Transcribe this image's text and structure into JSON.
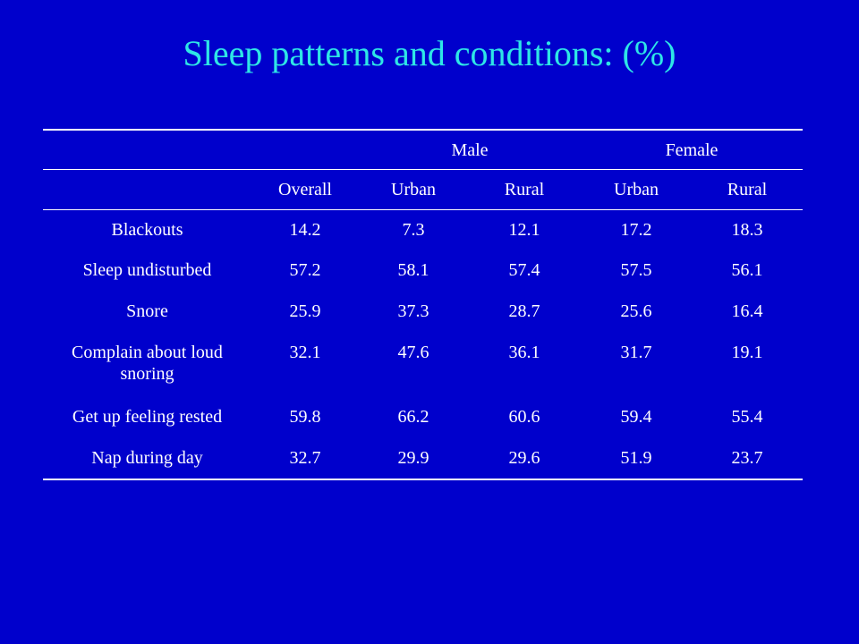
{
  "title": "Sleep patterns and conditions: (%)",
  "table": {
    "group_headers": [
      "Male",
      "Female"
    ],
    "column_headers": [
      "Overall",
      "Urban",
      "Rural",
      "Urban",
      "Rural"
    ],
    "rows": [
      {
        "label": "Blackouts",
        "values": [
          "14.2",
          "7.3",
          "12.1",
          "17.2",
          "18.3"
        ]
      },
      {
        "label": "Sleep undisturbed",
        "values": [
          "57.2",
          "58.1",
          "57.4",
          "57.5",
          "56.1"
        ]
      },
      {
        "label": "Snore",
        "values": [
          "25.9",
          "37.3",
          "28.7",
          "25.6",
          "16.4"
        ]
      },
      {
        "label": "Complain about loud snoring",
        "values": [
          "32.1",
          "47.6",
          "36.1",
          "31.7",
          "19.1"
        ]
      },
      {
        "label": "Get up feeling rested",
        "values": [
          "59.8",
          "66.2",
          "60.6",
          "59.4",
          "55.4"
        ]
      },
      {
        "label": "Nap during day",
        "values": [
          "32.7",
          "29.9",
          "29.6",
          "51.9",
          "23.7"
        ]
      }
    ]
  },
  "colors": {
    "background": "#0000cc",
    "title": "#2ee6e6",
    "text": "#ffffff"
  }
}
